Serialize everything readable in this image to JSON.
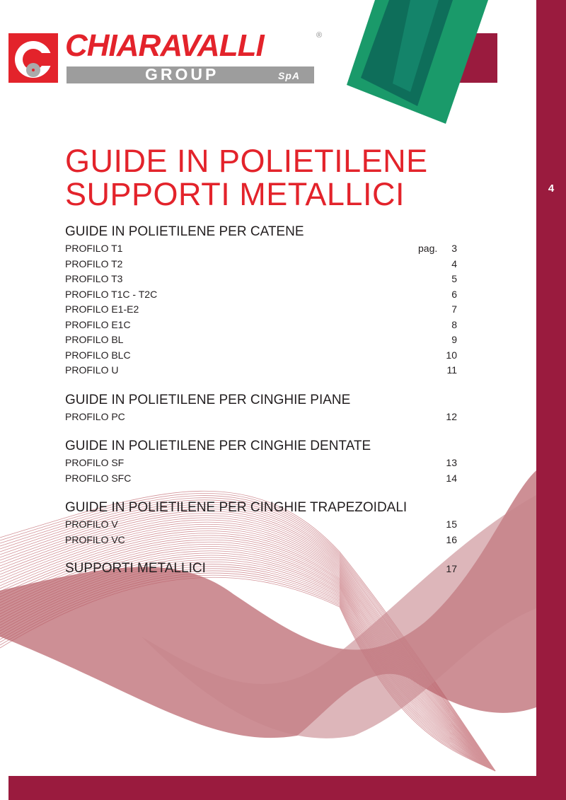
{
  "logo": {
    "name": "CHIARAVALLI",
    "group": "GROUP",
    "suffix": "SpA",
    "registered": "®"
  },
  "page_number": "4",
  "title": {
    "line1": "GUIDE IN POLIETILENE",
    "line2": "SUPPORTI METALLICI"
  },
  "page_label": "pag.",
  "sections": [
    {
      "heading": "GUIDE IN POLIETILENE PER CATENE",
      "items": [
        {
          "label": "PROFILO T1",
          "page": "3"
        },
        {
          "label": "PROFILO T2",
          "page": "4"
        },
        {
          "label": "PROFILO T3",
          "page": "5"
        },
        {
          "label": "PROFILO T1C - T2C",
          "page": "6"
        },
        {
          "label": "PROFILO E1-E2",
          "page": "7"
        },
        {
          "label": "PROFILO E1C",
          "page": "8"
        },
        {
          "label": "PROFILO BL",
          "page": "9"
        },
        {
          "label": "PROFILO BLC",
          "page": "10"
        },
        {
          "label": "PROFILO U",
          "page": "11"
        }
      ]
    },
    {
      "heading": "GUIDE IN POLIETILENE PER CINGHIE PIANE",
      "items": [
        {
          "label": "PROFILO PC",
          "page": "12"
        }
      ]
    },
    {
      "heading": "GUIDE IN POLIETILENE PER CINGHIE DENTATE",
      "items": [
        {
          "label": "PROFILO SF",
          "page": "13"
        },
        {
          "label": "PROFILO SFC",
          "page": "14"
        }
      ]
    },
    {
      "heading": "GUIDE IN POLIETILENE PER CINGHIE TRAPEZOIDALI",
      "items": [
        {
          "label": "PROFILO V",
          "page": "15"
        },
        {
          "label": "PROFILO VC",
          "page": "16"
        }
      ]
    },
    {
      "heading": "SUPPORTI METALLICI",
      "page": "17",
      "items": []
    }
  ],
  "colors": {
    "brand_red": "#e3232b",
    "maroon": "#9a1b3e",
    "product_green": "#1a9a6a"
  }
}
